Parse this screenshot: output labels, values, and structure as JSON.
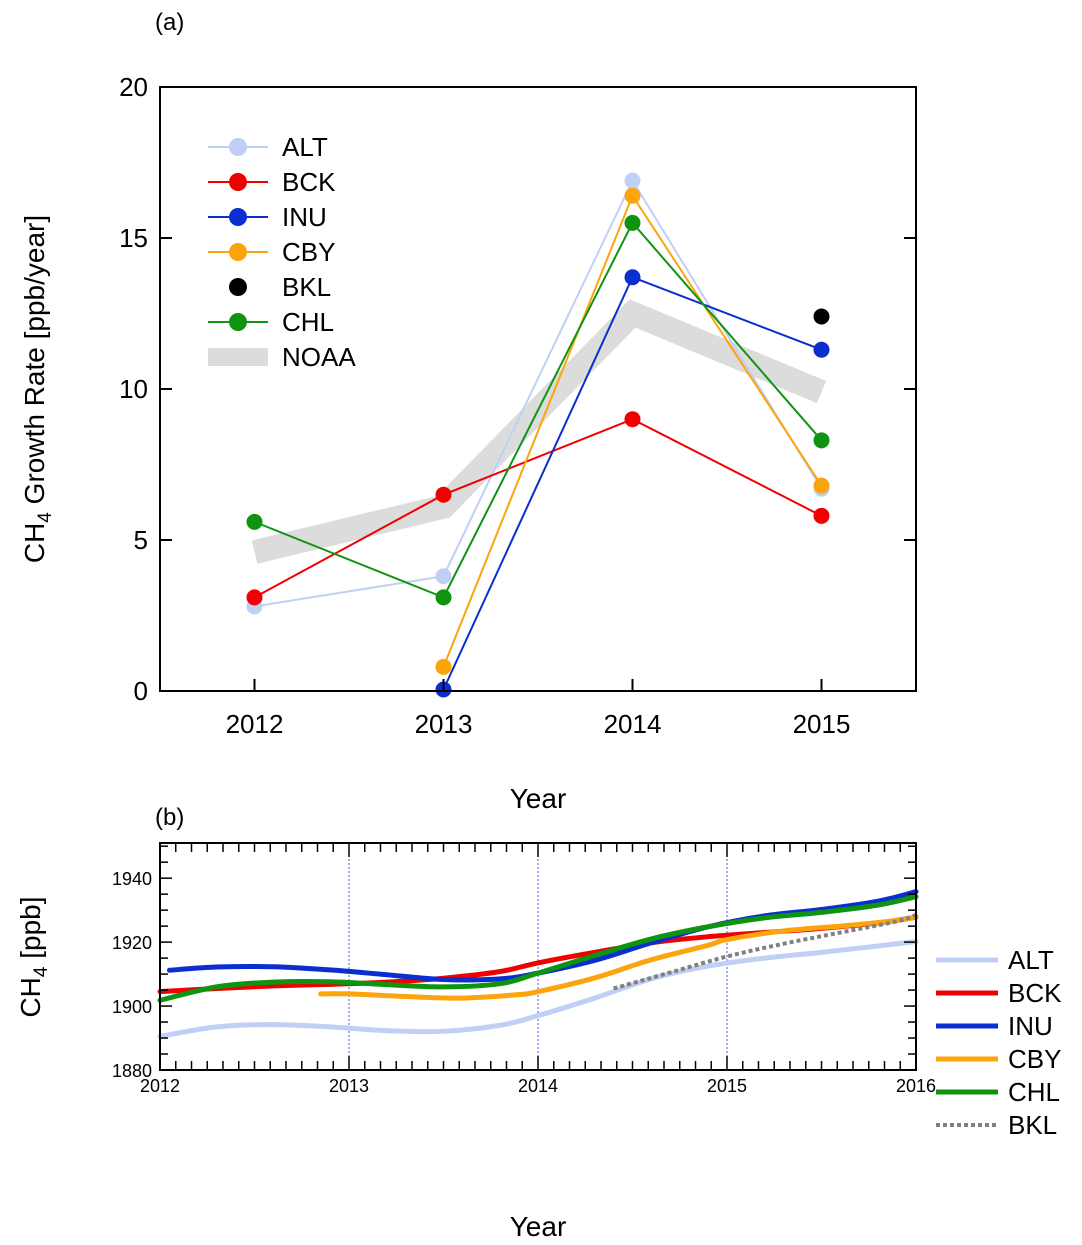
{
  "chart_data": [
    {
      "panel_label": "(a)",
      "type": "line",
      "xlabel": "Year",
      "ylabel_main": "CH",
      "ylabel_sub": "4",
      "ylabel_rest": " Growth Rate [ppb/year]",
      "xlim": [
        2011.5,
        2015.5
      ],
      "ylim": [
        0,
        20
      ],
      "xticks": [
        2012,
        2013,
        2014,
        2015
      ],
      "yticks": [
        0,
        5,
        10,
        15,
        20
      ],
      "grid": false,
      "legend_position": "top-left",
      "series": [
        {
          "name": "ALT",
          "color": "#c0cff5",
          "marker": "circle",
          "x": [
            2012,
            2013,
            2014,
            2015
          ],
          "y": [
            2.8,
            3.8,
            16.9,
            6.7
          ]
        },
        {
          "name": "BCK",
          "color": "#f00000",
          "marker": "circle",
          "x": [
            2012,
            2013,
            2014,
            2015
          ],
          "y": [
            3.1,
            6.5,
            9.0,
            5.8
          ]
        },
        {
          "name": "INU",
          "color": "#0a2ecf",
          "marker": "circle",
          "x": [
            2013,
            2014,
            2015
          ],
          "y": [
            0.05,
            13.7,
            11.3
          ]
        },
        {
          "name": "CBY",
          "color": "#fca40c",
          "marker": "circle",
          "x": [
            2013,
            2014,
            2015
          ],
          "y": [
            0.8,
            16.4,
            6.8
          ]
        },
        {
          "name": "BKL",
          "color": "#000000",
          "marker": "circle",
          "x": [
            2015
          ],
          "y": [
            12.4
          ]
        },
        {
          "name": "CHL",
          "color": "#0f9412",
          "marker": "circle",
          "x": [
            2012,
            2013,
            2014,
            2015
          ],
          "y": [
            5.6,
            3.1,
            15.5,
            8.3
          ]
        },
        {
          "name": "NOAA",
          "color": "#dcdcdc",
          "marker": "band",
          "x": [
            2012,
            2013,
            2014,
            2015
          ],
          "y": [
            4.6,
            6.1,
            12.5,
            9.9
          ]
        }
      ]
    },
    {
      "panel_label": "(b)",
      "type": "line",
      "xlabel": "Year",
      "ylabel_main": "CH",
      "ylabel_sub": "4",
      "ylabel_rest": " [ppb]",
      "xlim": [
        2012,
        2016
      ],
      "ylim": [
        1880,
        1951
      ],
      "xticks": [
        2012,
        2013,
        2014,
        2015,
        2016
      ],
      "yticks": [
        1880,
        1900,
        1920,
        1940
      ],
      "grid": "vertical dotted lines at 2013, 2014, 2015",
      "legend_position": "right, outside plot",
      "series": [
        {
          "name": "ALT",
          "color": "#c0cff5",
          "style": "solid",
          "x": [
            2012.0,
            2012.3,
            2012.6,
            2012.9,
            2013.2,
            2013.5,
            2013.8,
            2014.0,
            2014.3,
            2014.6,
            2014.9,
            2015.2,
            2015.5,
            2015.8,
            2016.0
          ],
          "y": [
            1890.5,
            1893.5,
            1894.2,
            1893.5,
            1892.3,
            1892.1,
            1894.0,
            1897.0,
            1902.5,
            1908.5,
            1912.5,
            1915.0,
            1916.8,
            1918.8,
            1920.2
          ]
        },
        {
          "name": "BCK",
          "color": "#f00000",
          "style": "solid",
          "x": [
            2012.0,
            2012.3,
            2012.6,
            2012.9,
            2013.2,
            2013.5,
            2013.8,
            2014.0,
            2014.3,
            2014.6,
            2014.9,
            2015.2,
            2015.5,
            2015.8,
            2016.0
          ],
          "y": [
            1904.5,
            1905.5,
            1906.3,
            1906.8,
            1907.5,
            1908.7,
            1910.8,
            1913.5,
            1916.8,
            1919.8,
            1921.7,
            1923.0,
            1924.3,
            1926.0,
            1927.8
          ]
        },
        {
          "name": "INU",
          "color": "#0a2ecf",
          "style": "solid",
          "x": [
            2012.05,
            2012.3,
            2012.6,
            2012.9,
            2013.2,
            2013.5,
            2013.8,
            2014.0,
            2014.3,
            2014.6,
            2014.9,
            2015.2,
            2015.5,
            2015.8,
            2016.0
          ],
          "y": [
            1911.2,
            1912.2,
            1912.3,
            1911.3,
            1909.8,
            1908.3,
            1908.5,
            1910.3,
            1914.3,
            1919.8,
            1924.8,
            1928.2,
            1930.2,
            1932.8,
            1935.8
          ]
        },
        {
          "name": "CBY",
          "color": "#fca40c",
          "style": "solid",
          "x": [
            2012.85,
            2013.0,
            2013.3,
            2013.6,
            2013.9,
            2014.0,
            2014.3,
            2014.6,
            2014.9,
            2015.0,
            2015.3,
            2015.6,
            2015.9,
            2016.0
          ],
          "y": [
            1903.8,
            1903.8,
            1903.0,
            1902.5,
            1903.6,
            1904.5,
            1908.8,
            1914.5,
            1919.0,
            1920.8,
            1923.5,
            1925.0,
            1926.8,
            1928.0
          ]
        },
        {
          "name": "CHL",
          "color": "#0f9412",
          "style": "solid",
          "x": [
            2012.0,
            2012.3,
            2012.6,
            2012.9,
            2013.2,
            2013.5,
            2013.8,
            2014.0,
            2014.3,
            2014.6,
            2014.9,
            2015.2,
            2015.5,
            2015.8,
            2016.0
          ],
          "y": [
            1901.8,
            1906.0,
            1907.5,
            1907.6,
            1906.7,
            1906.0,
            1907.0,
            1910.3,
            1915.8,
            1921.0,
            1924.8,
            1927.6,
            1929.3,
            1931.6,
            1934.2
          ]
        },
        {
          "name": "BKL",
          "color": "#808080",
          "style": "dotted",
          "x": [
            2014.4,
            2014.7,
            2015.0,
            2015.3,
            2015.6,
            2015.9,
            2016.0
          ],
          "y": [
            1905.5,
            1910.5,
            1915.5,
            1919.5,
            1923.0,
            1926.5,
            1928.5
          ]
        }
      ]
    }
  ]
}
